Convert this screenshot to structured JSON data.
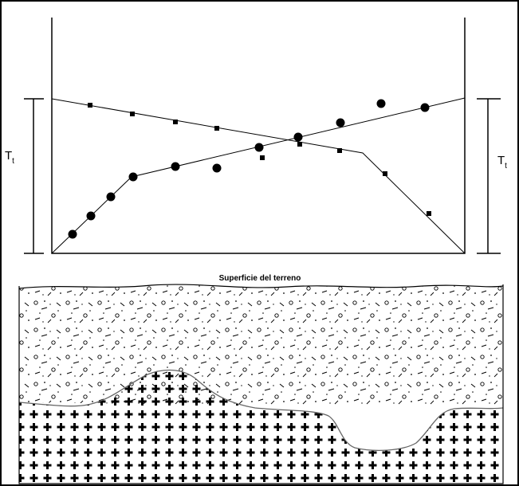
{
  "left_label": {
    "main": "T",
    "sub": "t"
  },
  "right_label": {
    "main": "T",
    "sub": "t"
  },
  "surface_label": "Superficie del terreno"
}
